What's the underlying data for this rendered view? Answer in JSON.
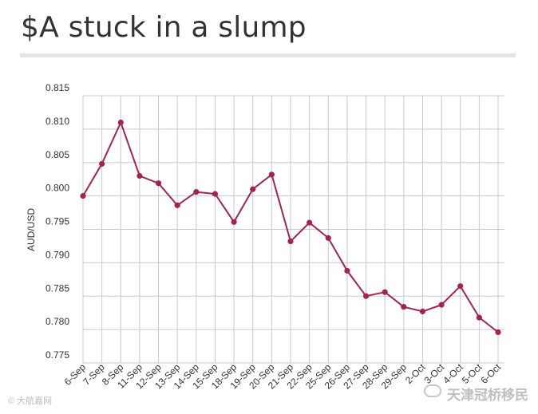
{
  "chart_data": {
    "type": "line",
    "title": "$A stuck in a slump",
    "ylabel": "AUD/USD",
    "xlabel": "",
    "ylim": [
      0.775,
      0.815
    ],
    "yticks": [
      "0.815",
      "0.810",
      "0.805",
      "0.800",
      "0.795",
      "0.790",
      "0.785",
      "0.780",
      "0.775"
    ],
    "grid": true,
    "legend": "none",
    "colors": {
      "line": "#a3254f",
      "grid": "#c8c8d2",
      "axis_text": "#333333"
    },
    "categories": [
      "6-Sep",
      "7-Sep",
      "8-Sep",
      "11-Sep",
      "12-Sep",
      "13-Sep",
      "14-Sep",
      "15-Sep",
      "18-Sep",
      "19-Sep",
      "20-Sep",
      "21-Sep",
      "22-Sep",
      "25-Sep",
      "26-Sep",
      "27-Sep",
      "28-Sep",
      "29-Sep",
      "2-Oct",
      "3-Oct",
      "4-Oct",
      "5-Oct",
      "6-Oct"
    ],
    "values": [
      0.8,
      0.8048,
      0.811,
      0.803,
      0.8019,
      0.7986,
      0.8006,
      0.8003,
      0.7961,
      0.801,
      0.8032,
      0.7932,
      0.796,
      0.7937,
      0.7888,
      0.785,
      0.7856,
      0.7834,
      0.7827,
      0.7837,
      0.7865,
      0.7818,
      0.7796
    ]
  },
  "watermark": {
    "left_text": "© 大航嘉网",
    "right_text": "天津冠桥移民"
  }
}
